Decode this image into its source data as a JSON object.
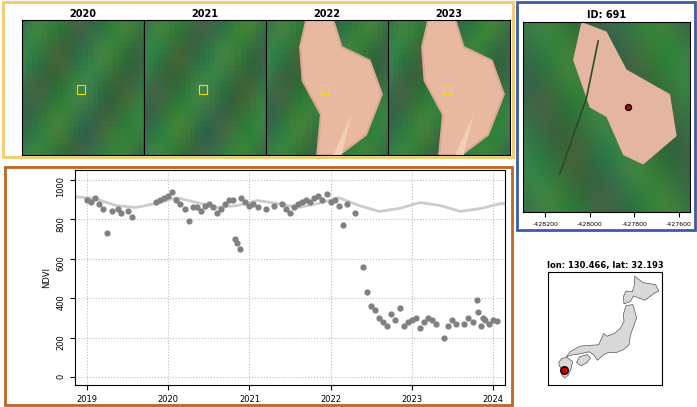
{
  "chart_data": {
    "type": "scatter",
    "y_label": "NDVI",
    "xlim": [
      2018.85,
      2024.15
    ],
    "ylim": [
      -40,
      1050
    ],
    "xticks": [
      2019,
      2020,
      2021,
      2022,
      2023,
      2024
    ],
    "yticks": [
      0,
      200,
      400,
      600,
      800,
      1000
    ],
    "grid": true,
    "series": [
      {
        "type": "line",
        "color": "#cccccc",
        "x": [
          2018.85,
          2019.1,
          2019.35,
          2019.6,
          2019.85,
          2020.1,
          2020.35,
          2020.6,
          2020.85,
          2021.1,
          2021.35,
          2021.6,
          2021.85,
          2022.1,
          2022.35,
          2022.6,
          2022.85,
          2023.1,
          2023.35,
          2023.6,
          2023.85,
          2024.1,
          2024.15
        ],
        "values": [
          915,
          905,
          870,
          860,
          880,
          910,
          885,
          860,
          870,
          895,
          880,
          860,
          880,
          910,
          870,
          840,
          855,
          885,
          870,
          840,
          855,
          880,
          880
        ]
      },
      {
        "type": "scatter",
        "color": "#808080",
        "marker": "o",
        "x": [
          2019.0,
          2019.05,
          2019.1,
          2019.15,
          2019.2,
          2019.25,
          2019.3,
          2019.38,
          2019.42,
          2019.5,
          2019.55,
          2019.85,
          2019.9,
          2019.95,
          2020.0,
          2020.05,
          2020.1,
          2020.15,
          2020.2,
          2020.25,
          2020.3,
          2020.35,
          2020.4,
          2020.45,
          2020.5,
          2020.55,
          2020.6,
          2020.65,
          2020.7,
          2020.75,
          2020.8,
          2020.82,
          2020.85,
          2020.88,
          2020.9,
          2020.95,
          2021.0,
          2021.05,
          2021.1,
          2021.2,
          2021.3,
          2021.4,
          2021.45,
          2021.5,
          2021.55,
          2021.6,
          2021.65,
          2021.7,
          2021.75,
          2021.8,
          2021.85,
          2021.9,
          2021.95,
          2022.0,
          2022.05,
          2022.1,
          2022.15,
          2022.2,
          2022.3,
          2022.4,
          2022.45,
          2022.5,
          2022.55,
          2022.6,
          2022.65,
          2022.7,
          2022.75,
          2022.8,
          2022.85,
          2022.9,
          2022.95,
          2023.0,
          2023.05,
          2023.1,
          2023.15,
          2023.2,
          2023.25,
          2023.3,
          2023.4,
          2023.45,
          2023.5,
          2023.55,
          2023.65,
          2023.7,
          2023.75,
          2023.8,
          2023.82,
          2023.85,
          2023.88,
          2023.9,
          2023.95,
          2024.0,
          2024.05
        ],
        "values": [
          900,
          890,
          910,
          880,
          850,
          730,
          840,
          850,
          830,
          840,
          810,
          890,
          900,
          910,
          920,
          940,
          900,
          880,
          850,
          790,
          860,
          860,
          840,
          870,
          880,
          860,
          830,
          850,
          880,
          900,
          900,
          700,
          680,
          650,
          910,
          890,
          870,
          880,
          860,
          850,
          870,
          880,
          850,
          830,
          860,
          880,
          890,
          900,
          890,
          910,
          920,
          900,
          930,
          890,
          900,
          870,
          770,
          880,
          830,
          560,
          430,
          360,
          340,
          300,
          280,
          260,
          320,
          290,
          350,
          260,
          280,
          290,
          300,
          250,
          280,
          300,
          290,
          270,
          200,
          260,
          290,
          270,
          270,
          300,
          280,
          390,
          330,
          260,
          300,
          290,
          270,
          290,
          285
        ]
      }
    ]
  },
  "image_panels": {
    "titles": [
      "2020",
      "2021",
      "2022",
      "2023"
    ]
  },
  "detail_map": {
    "title": "ID: 691",
    "xlim": [
      -428300,
      -427550
    ],
    "xticks": [
      -428200,
      -428000,
      -427800,
      -427600
    ],
    "tick_labels": "x"
  },
  "location_map": {
    "title": "lon: 130.466, lat: 32.193",
    "xlim": [
      128,
      146
    ],
    "ylim": [
      30,
      46
    ],
    "point": [
      130.466,
      32.193
    ],
    "tick_labels": false
  }
}
